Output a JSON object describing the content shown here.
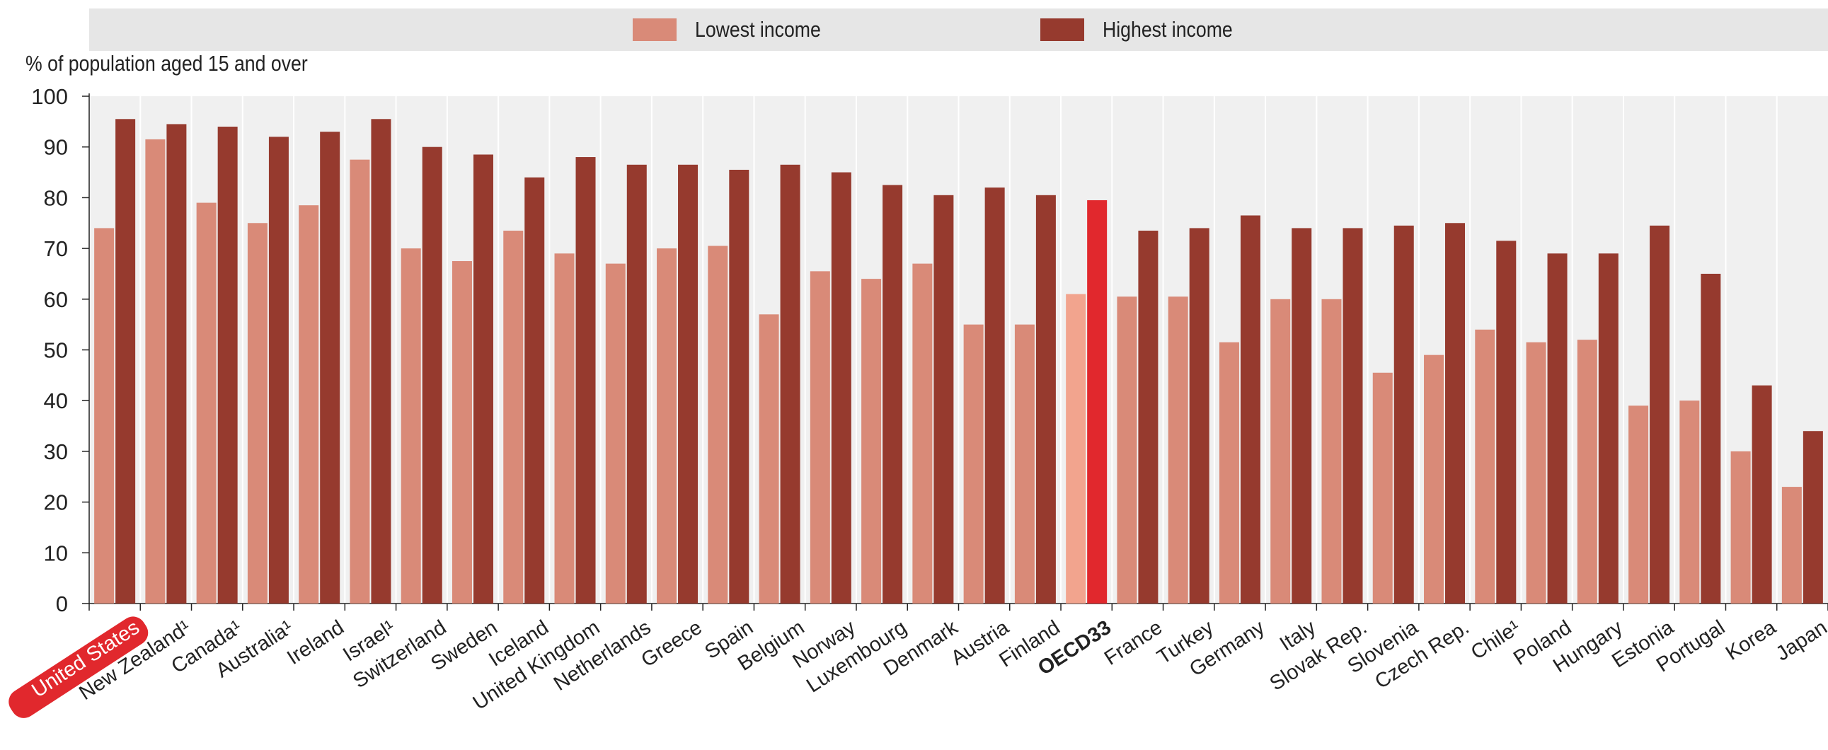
{
  "chart_data": {
    "type": "bar",
    "title": "",
    "xlabel": "",
    "ylabel": "% of population aged 15 and over",
    "ylim": [
      0,
      100
    ],
    "yticks": [
      0,
      10,
      20,
      30,
      40,
      50,
      60,
      70,
      80,
      90,
      100
    ],
    "grid": "vertical",
    "legend_position": "top",
    "categories": [
      "United States",
      "New Zealand¹",
      "Canada¹",
      "Australia¹",
      "Ireland",
      "Israel¹",
      "Switzerland",
      "Sweden",
      "Iceland",
      "United Kingdom",
      "Netherlands",
      "Greece",
      "Spain",
      "Belgium",
      "Norway",
      "Luxembourg",
      "Denmark",
      "Austria",
      "Finland",
      "OECD33",
      "France",
      "Turkey",
      "Germany",
      "Italy",
      "Slovak Rep.",
      "Slovenia",
      "Czech Rep.",
      "Chile¹",
      "Poland",
      "Hungary",
      "Estonia",
      "Portugal",
      "Korea",
      "Japan"
    ],
    "highlighted_category": "United States",
    "bold_category": "OECD33",
    "series": [
      {
        "name": "Lowest income",
        "color": "#d98a78",
        "highlight_color": "#f2a48e",
        "values": [
          74,
          91.5,
          79,
          75,
          78.5,
          87.5,
          70,
          67.5,
          73.5,
          69,
          67,
          70,
          70.5,
          57,
          65.5,
          64,
          67,
          55,
          55,
          61,
          60.5,
          60.5,
          51.5,
          60,
          60,
          45.5,
          49,
          54,
          51.5,
          52,
          39,
          40,
          30,
          23
        ]
      },
      {
        "name": "Highest income",
        "color": "#963a2e",
        "highlight_color": "#e1282d",
        "values": [
          95.5,
          94.5,
          94,
          92,
          93,
          95.5,
          90,
          88.5,
          84,
          88,
          86.5,
          86.5,
          85.5,
          86.5,
          85,
          82.5,
          80.5,
          82,
          80.5,
          79.5,
          73.5,
          74,
          76.5,
          74,
          74,
          74.5,
          75,
          71.5,
          69,
          69,
          74.5,
          65,
          43,
          34
        ]
      }
    ]
  }
}
